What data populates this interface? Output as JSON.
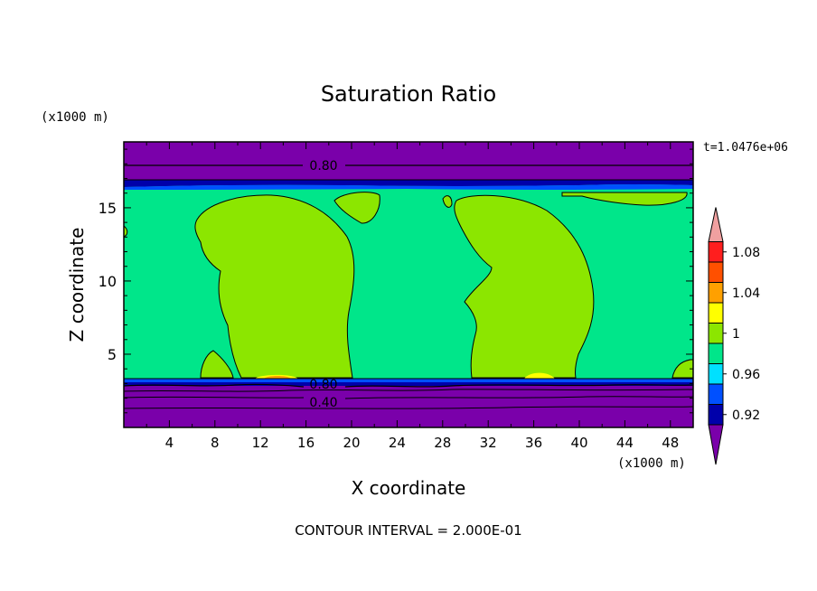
{
  "chart_data": {
    "type": "heatmap",
    "title": "Saturation Ratio",
    "xlabel": "X coordinate",
    "ylabel": "Z coordinate",
    "x_units": "(x1000 m)",
    "y_units": "(x1000 m)",
    "time_label": "t=1.0476e+06",
    "footer": "CONTOUR INTERVAL = 2.000E-01",
    "xlim": [
      0,
      50
    ],
    "ylim": [
      0,
      19.5
    ],
    "x_ticks": [
      "4",
      "8",
      "12",
      "16",
      "20",
      "24",
      "28",
      "32",
      "36",
      "40",
      "44",
      "48"
    ],
    "y_ticks": [
      "5",
      "10",
      "15"
    ],
    "contour_labels": [
      "0.80",
      "0.80",
      "0.40"
    ],
    "colorbar": {
      "tick_labels": [
        "1.08",
        "1.04",
        "1",
        "0.96",
        "0.92"
      ],
      "levels": [
        0.92,
        0.94,
        0.96,
        0.98,
        1.0,
        1.02,
        1.04,
        1.06,
        1.08,
        1.1
      ],
      "colors": [
        "#7a00aa",
        "#0000aa",
        "#0050ff",
        "#00e0ff",
        "#00e68a",
        "#8ce600",
        "#ffff00",
        "#ffa000",
        "#ff5000",
        "#ff1e1e",
        "#f0a0a0"
      ]
    },
    "regions": [
      {
        "level": "below 0.92",
        "z_range": [
          0,
          3.4
        ],
        "z_range_top": [
          18.3,
          19.5
        ]
      },
      {
        "level": "0.92-0.98",
        "z_range": [
          16.6,
          18.3
        ]
      },
      {
        "level": "0.98-1.00",
        "z_range": [
          3.4,
          16.6
        ]
      },
      {
        "level": "1.00-1.02",
        "plumes_x": [
          [
            8,
            20
          ],
          [
            30,
            40
          ]
        ]
      },
      {
        "level": "1.02-1.06",
        "spots_x": [
          13.5,
          36.5
        ],
        "z": 3.6
      }
    ]
  }
}
